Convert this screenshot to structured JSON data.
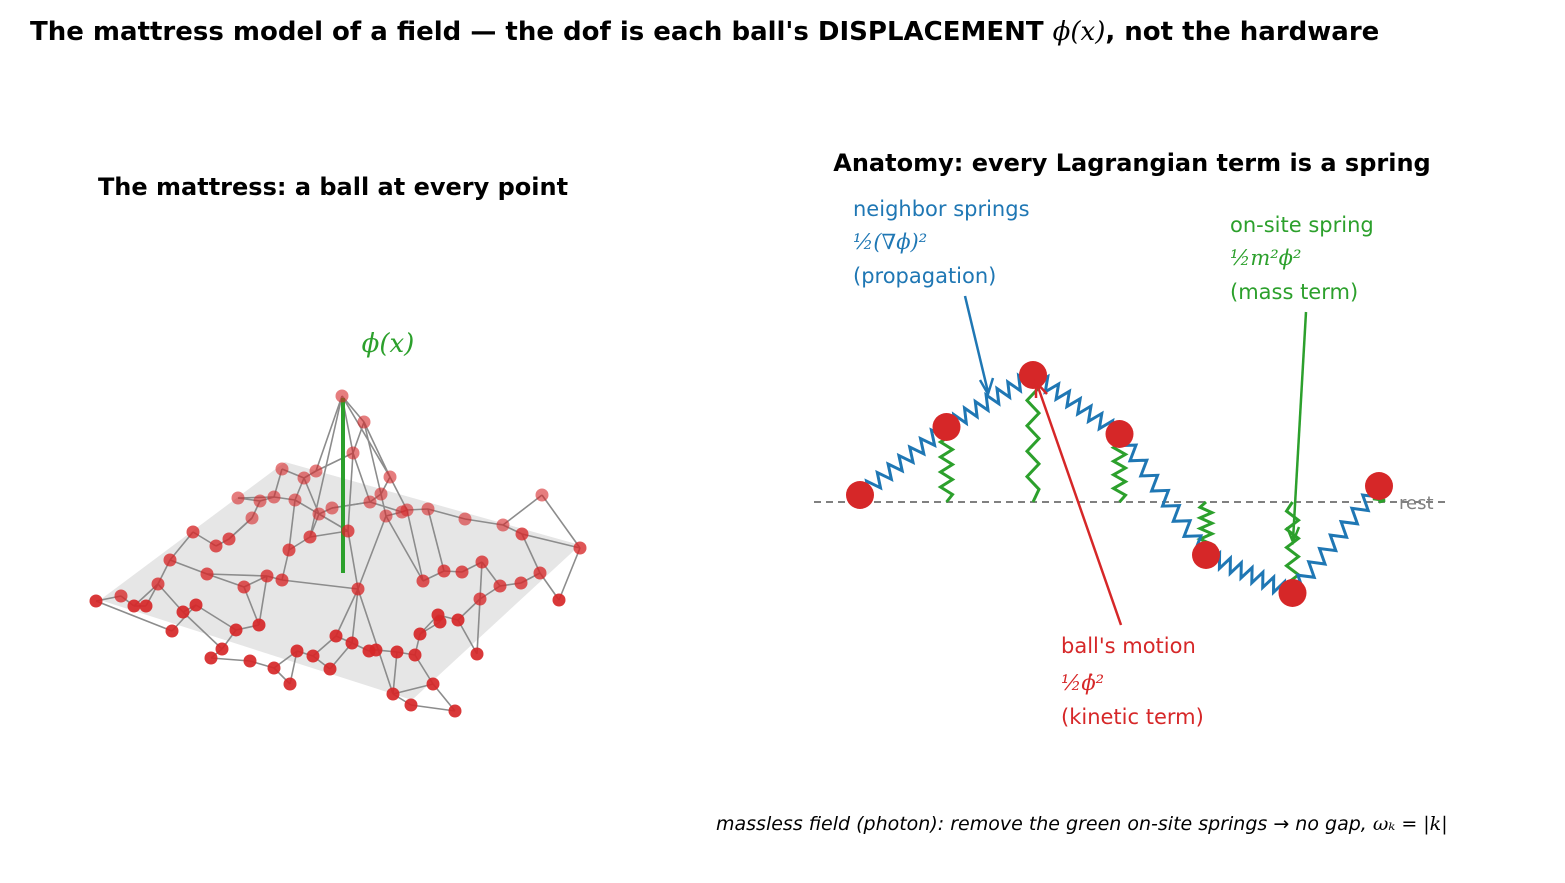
{
  "title": {
    "prefix": "The mattress model of a field  —  the dof is each ball's DISPLACEMENT ",
    "math": "ϕ(x)",
    "suffix": ", not the hardware"
  },
  "left_panel": {
    "title": "The mattress: a ball at every point",
    "phi_label": "ϕ(x)"
  },
  "right_panel": {
    "title": "Anatomy: every Lagrangian term is a spring",
    "rest_label": "rest",
    "neighbor": {
      "line1": "neighbor springs",
      "math": "½(∇ϕ)²",
      "line3": "(propagation)"
    },
    "onsite": {
      "line1": "on-site spring",
      "math": "½m²ϕ²",
      "line3": "(mass term)"
    },
    "kinetic": {
      "line1": "ball's motion",
      "math": "½ϕ̇²",
      "line3": "(kinetic term)"
    },
    "chain_displacements": [
      0.07,
      0.75,
      1.27,
      0.68,
      -0.53,
      -0.91,
      0.16
    ]
  },
  "footnote": {
    "text": "massless field (photon): remove the green on-site springs → no gap, ",
    "math": "ωₖ = |k|"
  },
  "colors": {
    "ball": "#d62728",
    "neighbor_spring": "#1f77b4",
    "onsite_spring": "#2ca02c",
    "edge": "#8c8c8c",
    "plane": "#e6e6e6",
    "rest_line": "#808080"
  }
}
